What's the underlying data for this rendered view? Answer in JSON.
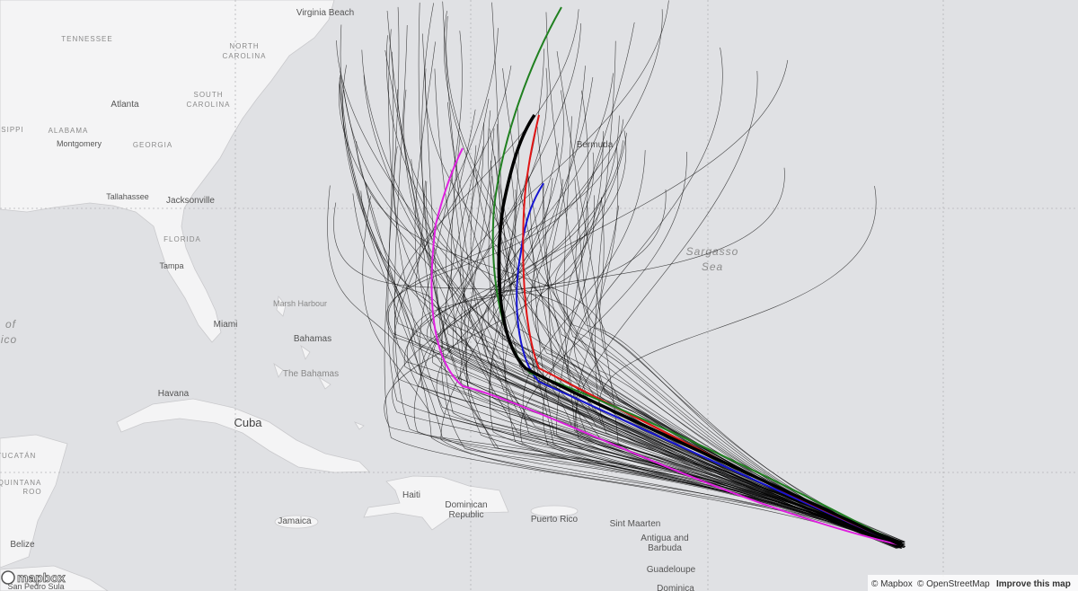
{
  "map": {
    "labels": [
      "Virginia Beach",
      "TENNESSEE",
      "NORTH",
      "CAROLINA",
      "Atlanta",
      "SOUTH",
      "CAROLINA",
      "SIPPI",
      "ALABAMA",
      "Montgomery",
      "GEORGIA",
      "Tallahassee",
      "Jacksonville",
      "FLORIDA",
      "Tampa",
      "Miami",
      "Bermuda",
      "Sargasso",
      "Sea",
      "Marsh Harbour",
      "Bahamas",
      "The Bahamas",
      "Havana",
      "Cuba",
      "Haiti",
      "Dominican",
      "Republic",
      "Jamaica",
      "Puerto Rico",
      "Sint Maarten",
      "Antigua and",
      "Barbuda",
      "Guadeloupe",
      "Dominica",
      "Belize",
      "YUCATÁN",
      "QUINTANA",
      "ROO",
      "San Pedro Sula",
      "of",
      "ico"
    ],
    "logo": "mapbox",
    "attribution": {
      "mapbox": "© Mapbox",
      "osm": "© OpenStreetMap",
      "improve": "Improve this map"
    }
  }
}
